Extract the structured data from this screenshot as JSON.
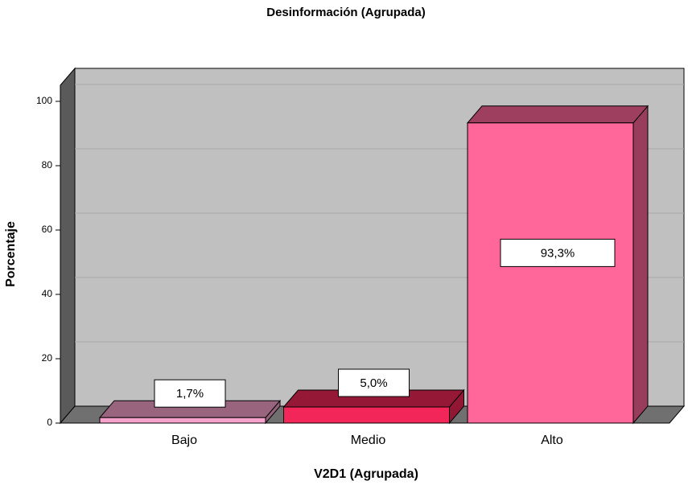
{
  "chart_data": {
    "type": "bar3d",
    "title": "Desinformación (Agrupada)",
    "x_label": "V2D1 (Agrupada)",
    "y_label": "Porcentaje",
    "categories": [
      "Bajo",
      "Medio",
      "Alto"
    ],
    "values": [
      1.7,
      5.0,
      93.3
    ],
    "value_labels": [
      "1,7%",
      "5,0%",
      "93,3%"
    ],
    "colors": [
      "#f6a2cc",
      "#f22659",
      "#ff6699"
    ],
    "ylim": [
      0,
      105
    ],
    "yticks": [
      0,
      20,
      40,
      60,
      80,
      100
    ],
    "grid": true
  }
}
